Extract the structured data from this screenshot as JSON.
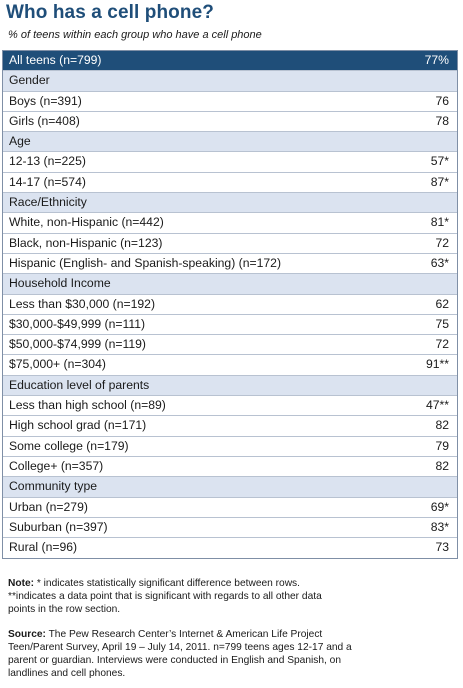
{
  "title": "Who has a cell phone?",
  "subtitle": "% of teens within each group who have a cell phone",
  "chart_data": {
    "type": "table",
    "title": "Who has a cell phone?",
    "subtitle": "% of teens within each group who have a cell phone",
    "total": {
      "label": "All teens (n=799)",
      "value": "77%"
    },
    "sections": [
      {
        "name": "Gender",
        "rows": [
          {
            "label": "Boys (n=391)",
            "value": "76"
          },
          {
            "label": "Girls (n=408)",
            "value": "78"
          }
        ]
      },
      {
        "name": "Age",
        "rows": [
          {
            "label": "12-13 (n=225)",
            "value": "57*"
          },
          {
            "label": "14-17 (n=574)",
            "value": "87*"
          }
        ]
      },
      {
        "name": "Race/Ethnicity",
        "rows": [
          {
            "label": "White, non-Hispanic (n=442)",
            "value": "81*"
          },
          {
            "label": "Black, non-Hispanic (n=123)",
            "value": "72"
          },
          {
            "label": "Hispanic (English- and Spanish-speaking) (n=172)",
            "value": "63*"
          }
        ]
      },
      {
        "name": "Household Income",
        "rows": [
          {
            "label": "Less than $30,000 (n=192)",
            "value": "62"
          },
          {
            "label": "$30,000-$49,999 (n=111)",
            "value": "75"
          },
          {
            "label": "$50,000-$74,999 (n=119)",
            "value": "72"
          },
          {
            "label": "$75,000+ (n=304)",
            "value": "91**"
          }
        ]
      },
      {
        "name": "Education level of parents",
        "rows": [
          {
            "label": "Less than high school (n=89)",
            "value": "47**"
          },
          {
            "label": "High school grad (n=171)",
            "value": "82"
          },
          {
            "label": "Some college (n=179)",
            "value": "79"
          },
          {
            "label": "College+ (n=357)",
            "value": "82"
          }
        ]
      },
      {
        "name": "Community type",
        "rows": [
          {
            "label": "Urban (n=279)",
            "value": "69*"
          },
          {
            "label": "Suburban (n=397)",
            "value": "83*"
          },
          {
            "label": "Rural (n=96)",
            "value": "73"
          }
        ]
      }
    ]
  },
  "note": {
    "label": "Note:",
    "lines": [
      " * indicates statistically significant difference between rows.",
      "**indicates a data point that is significant with regards to all other data",
      "points in the row section."
    ]
  },
  "source": {
    "label": "Source:",
    "lines": [
      " The Pew Research Center’s Internet & American Life Project",
      "Teen/Parent Survey, April 19 – July 14, 2011. n=799 teens ages 12-17 and a",
      "parent or guardian. Interviews were conducted in English and Spanish, on",
      "landlines and cell phones."
    ]
  },
  "colors": {
    "title": "#1f4e79",
    "header_bg": "#1f4e79",
    "section_bg": "#dbe3f0"
  }
}
